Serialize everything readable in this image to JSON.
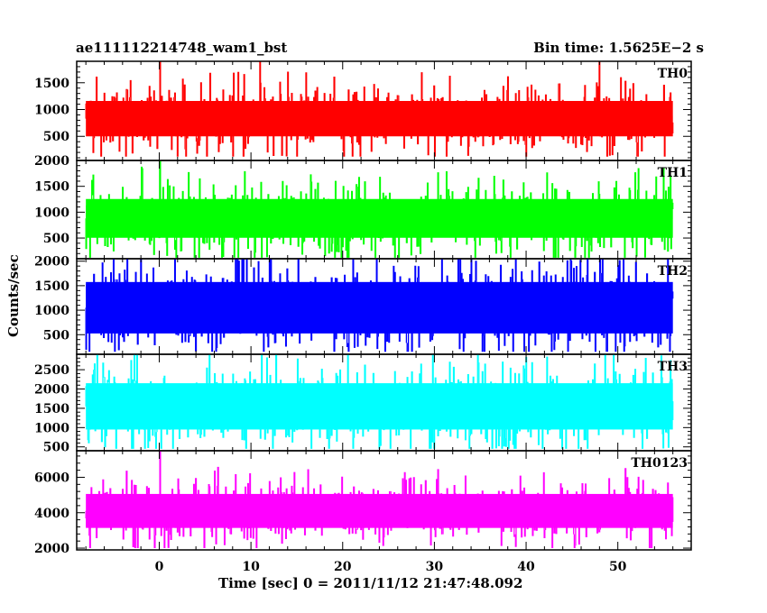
{
  "header": {
    "left_title": "ae111112214748_wam1_bst",
    "right_title": "Bin time: 1.5625E−2 s"
  },
  "axes": {
    "xlabel": "Time [sec] 0 = 2011/11/12 21:47:48.092",
    "ylabel": "Counts/sec"
  },
  "chart_data": {
    "type": "line",
    "title": "ae111112214748_wam1_bst",
    "subtitle": "Bin time: 1.5625E−2 s",
    "xlabel": "Time [sec] 0 = 2011/11/12 21:47:48.092",
    "ylabel": "Counts/sec",
    "xlim": [
      -9,
      58
    ],
    "x_ticks": [
      0,
      10,
      20,
      30,
      40,
      50
    ],
    "x_start": -8.0,
    "x_end": 56.0,
    "panels": [
      {
        "name": "TH0",
        "color": "#ff0000",
        "ylim": [
          50,
          1900
        ],
        "y_ticks": [
          500,
          1000,
          1500
        ],
        "mean": 830,
        "typical_low": 300,
        "typical_high": 1400,
        "min": 120,
        "spikes": [
          [
            0.1,
            1900
          ],
          [
            11.0,
            1900
          ],
          [
            48.0,
            1900
          ]
        ]
      },
      {
        "name": "TH1",
        "color": "#00ff00",
        "ylim": [
          100,
          2000
        ],
        "y_ticks": [
          500,
          1000,
          1500,
          2000
        ],
        "mean": 880,
        "typical_low": 350,
        "typical_high": 1600,
        "min": 120,
        "spikes": [
          [
            0.1,
            2000
          ],
          [
            55.0,
            1850
          ]
        ]
      },
      {
        "name": "TH2",
        "color": "#0000ff",
        "ylim": [
          100,
          2050
        ],
        "y_ticks": [
          500,
          1000,
          1500,
          2000
        ],
        "mean": 1050,
        "typical_low": 300,
        "typical_high": 2050,
        "min": 150,
        "spikes": []
      },
      {
        "name": "TH3",
        "color": "#00ffff",
        "ylim": [
          400,
          2900
        ],
        "y_ticks": [
          500,
          1000,
          1500,
          2000,
          2500
        ],
        "mean": 1550,
        "typical_low": 700,
        "typical_high": 2700,
        "min": 450,
        "spikes": []
      },
      {
        "name": "TH0123",
        "color": "#ff00ff",
        "ylim": [
          1900,
          7500
        ],
        "y_ticks": [
          2000,
          4000,
          6000
        ],
        "mean": 4100,
        "typical_low": 2600,
        "typical_high": 5800,
        "min": 2000,
        "spikes": [
          [
            0.1,
            7500
          ]
        ]
      }
    ]
  }
}
